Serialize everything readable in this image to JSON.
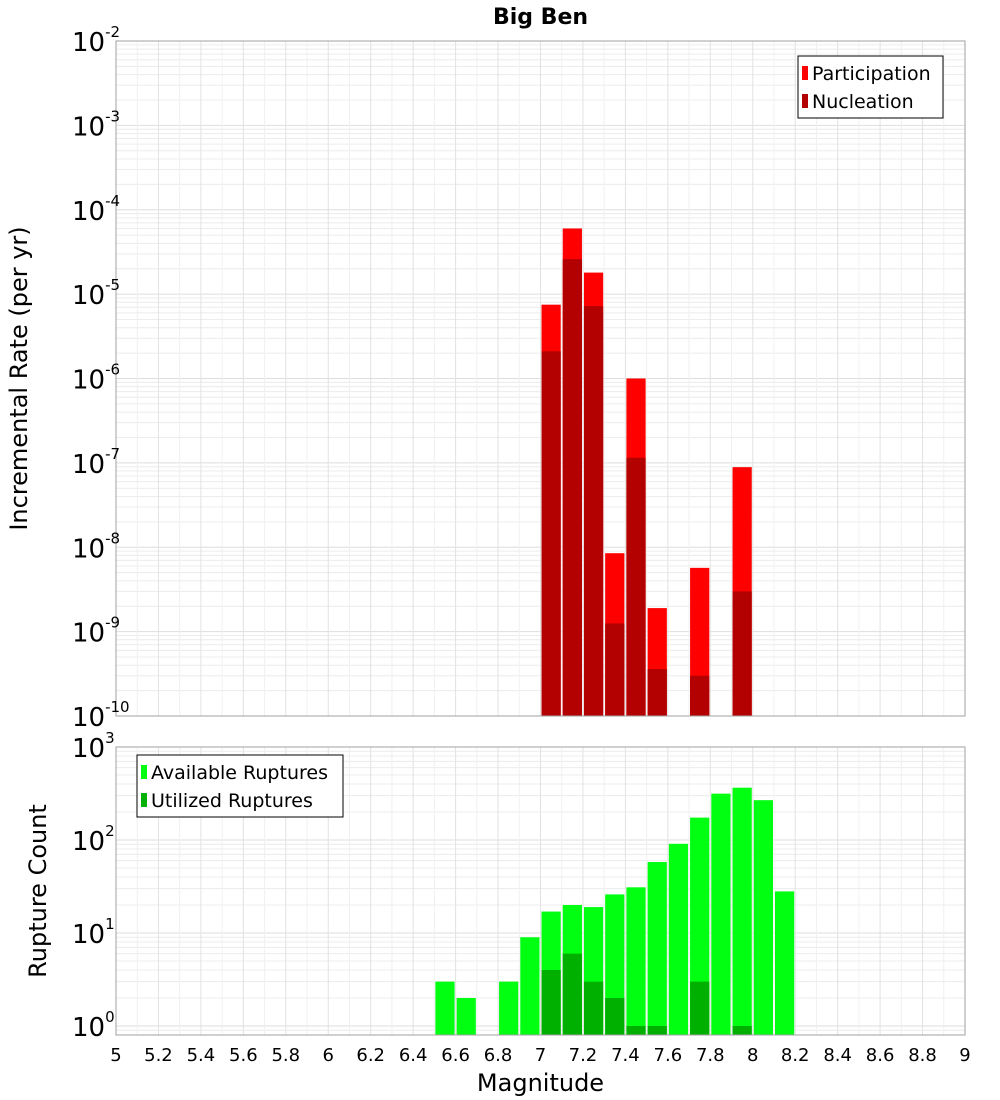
{
  "chart_data": [
    {
      "type": "bar",
      "title": "Big Ben",
      "ylabel": "Incremental Rate (per yr)",
      "xlabel": "",
      "yscale": "log",
      "ylim": [
        1e-10,
        0.01
      ],
      "xlim": [
        5,
        9
      ],
      "bin_width": 0.1,
      "grid": true,
      "legend_position": "top-right",
      "y_tick_labels": [
        {
          "base": "10",
          "exp": "-2"
        },
        {
          "base": "10",
          "exp": "-3"
        },
        {
          "base": "10",
          "exp": "-4"
        },
        {
          "base": "10",
          "exp": "-5"
        },
        {
          "base": "10",
          "exp": "-6"
        },
        {
          "base": "10",
          "exp": "-7"
        },
        {
          "base": "10",
          "exp": "-8"
        },
        {
          "base": "10",
          "exp": "-9"
        },
        {
          "base": "10",
          "exp": "-10"
        }
      ],
      "series": [
        {
          "name": "Participation",
          "color": "#ff0000",
          "x": [
            7.05,
            7.15,
            7.25,
            7.35,
            7.45,
            7.55,
            7.75,
            7.95
          ],
          "values": [
            7.5e-06,
            6e-05,
            1.8e-05,
            8.5e-09,
            1e-06,
            1.9e-09,
            5.7e-09,
            8.9e-08
          ]
        },
        {
          "name": "Nucleation",
          "color": "#b30000",
          "x": [
            7.05,
            7.15,
            7.25,
            7.35,
            7.45,
            7.55,
            7.75,
            7.95
          ],
          "values": [
            2.1e-06,
            2.6e-05,
            7.2e-06,
            1.25e-09,
            1.15e-07,
            3.6e-10,
            3e-10,
            3e-09
          ]
        }
      ]
    },
    {
      "type": "bar",
      "title": "",
      "ylabel": "Rupture Count",
      "xlabel": "Magnitude",
      "yscale": "log",
      "ylim": [
        0.8,
        1000
      ],
      "xlim": [
        5,
        9
      ],
      "bin_width": 0.1,
      "grid": true,
      "legend_position": "top-left",
      "x_tick_labels": [
        "5",
        "5.2",
        "5.4",
        "5.6",
        "5.8",
        "6",
        "6.2",
        "6.4",
        "6.6",
        "6.8",
        "7",
        "7.2",
        "7.4",
        "7.6",
        "7.8",
        "8",
        "8.2",
        "8.4",
        "8.6",
        "8.8",
        "9"
      ],
      "y_tick_labels": [
        {
          "base": "10",
          "exp": "3"
        },
        {
          "base": "10",
          "exp": "2"
        },
        {
          "base": "10",
          "exp": "1"
        },
        {
          "base": "10",
          "exp": "0"
        }
      ],
      "series": [
        {
          "name": "Available Ruptures",
          "color": "#00ff10",
          "x": [
            6.55,
            6.65,
            6.85,
            6.95,
            7.05,
            7.15,
            7.25,
            7.35,
            7.45,
            7.55,
            7.65,
            7.75,
            7.85,
            7.95,
            8.05,
            8.15
          ],
          "values": [
            3,
            2,
            3,
            9,
            17,
            20,
            19,
            26,
            31,
            58,
            91,
            174,
            315,
            365,
            268,
            28
          ]
        },
        {
          "name": "Utilized Ruptures",
          "color": "#00b000",
          "x": [
            7.05,
            7.15,
            7.25,
            7.35,
            7.45,
            7.55,
            7.75,
            7.95
          ],
          "values": [
            4,
            6,
            3,
            2,
            1,
            1,
            3,
            1
          ]
        }
      ]
    }
  ]
}
